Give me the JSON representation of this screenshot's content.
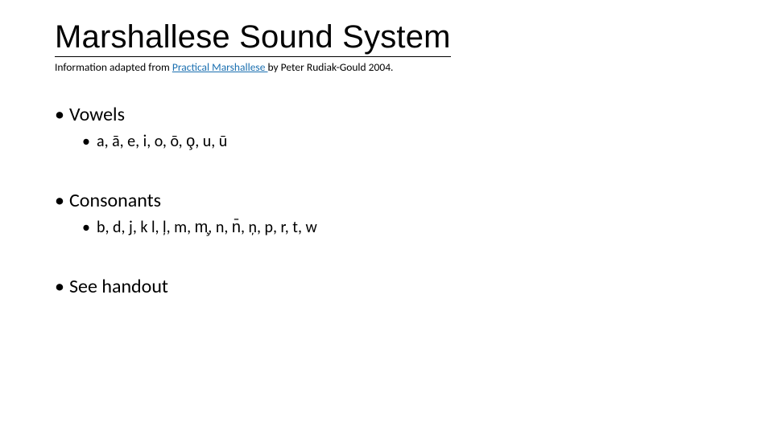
{
  "title": "Marshallese Sound System",
  "subtitle": {
    "prefix": "Information adapted from ",
    "link_text": "Practical Marshallese ",
    "link_href": "#",
    "suffix": "by Peter Rudiak-Gould 2004."
  },
  "bullets": {
    "vowels": {
      "heading": "Vowels",
      "items": "a, ā, e, i, o, ō, o̧, u, ū"
    },
    "consonants": {
      "heading": "Consonants",
      "items": "b, d, j, k l, ļ, m, m̧, n, n̄, ņ, p, r, t, w"
    },
    "see_handout": "See handout"
  },
  "colors": {
    "background": "#ffffff",
    "text": "#000000",
    "link": "#1a6fb0",
    "title_underline": "#000000"
  },
  "fonts": {
    "title_size_pt": 30,
    "subtitle_size_pt": 10,
    "level1_size_pt": 18,
    "level2_size_pt": 15,
    "title_weight": 300
  }
}
